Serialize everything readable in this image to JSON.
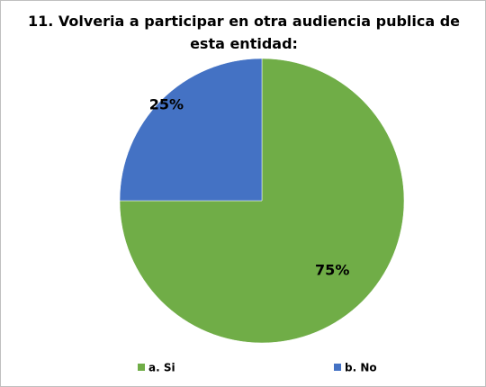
{
  "chart_data": {
    "type": "pie",
    "title": "11. Volveria a participar en otra audiencia publica de esta entidad:",
    "categories": [
      "a. Si",
      "b. No"
    ],
    "values": [
      75,
      25
    ],
    "value_labels": [
      "75%",
      "25%"
    ],
    "colors": [
      "#70ad47",
      "#4472c4"
    ],
    "legend": "bottom"
  }
}
